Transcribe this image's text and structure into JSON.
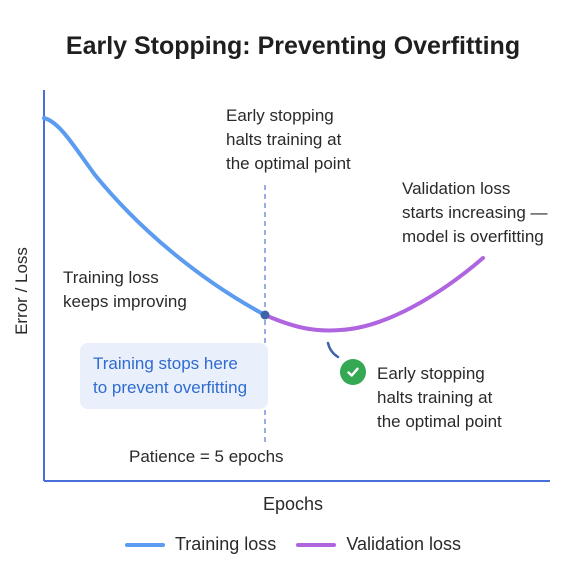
{
  "title": "Early Stopping: Preventing Overfitting",
  "axes": {
    "x_label": "Epochs",
    "y_label": "Error / Loss"
  },
  "annotations": {
    "top_center": [
      "Early stopping",
      "halts training at",
      "the optimal point"
    ],
    "top_right": [
      "Validation loss",
      "starts increasing —",
      "model is overfitting"
    ],
    "left": [
      "Training loss",
      "keeps improving"
    ],
    "callout": [
      "Training stops here",
      "to prevent overfitting"
    ],
    "bottom_right": [
      "Early stopping",
      "halts training at",
      "the optimal point"
    ],
    "patience": "Patience = 5 epochs"
  },
  "legend": [
    {
      "label": "Training loss",
      "color": "#5b9bf0"
    },
    {
      "label": "Validation loss",
      "color": "#b065e0"
    }
  ],
  "colors": {
    "training": "#5b9bf0",
    "validation": "#b065e0",
    "axis": "#4a6fd8",
    "stop_line": "#7a93d8",
    "stop_point": "#3f63a8",
    "check": "#34a853",
    "callout_text": "#2f6bd0",
    "callout_bg": "#e9f0fb"
  },
  "icons": {
    "check": "check-circle-icon"
  }
}
